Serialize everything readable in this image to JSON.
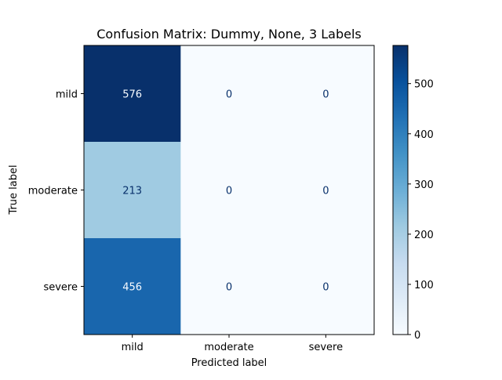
{
  "chart_data": {
    "type": "heatmap",
    "title": "Confusion Matrix: Dummy, None, 3 Labels",
    "xlabel": "Predicted label",
    "ylabel": "True label",
    "x_categories": [
      "mild",
      "moderate",
      "severe"
    ],
    "y_categories": [
      "mild",
      "moderate",
      "severe"
    ],
    "values": [
      [
        576,
        0,
        0
      ],
      [
        213,
        0,
        0
      ],
      [
        456,
        0,
        0
      ]
    ],
    "colormap": "Blues",
    "colorbar": {
      "range": [
        0,
        576
      ],
      "ticks": [
        0,
        100,
        200,
        300,
        400,
        500
      ],
      "tick_labels": [
        "0",
        "100",
        "200",
        "300",
        "400",
        "500"
      ]
    },
    "grid": false
  }
}
